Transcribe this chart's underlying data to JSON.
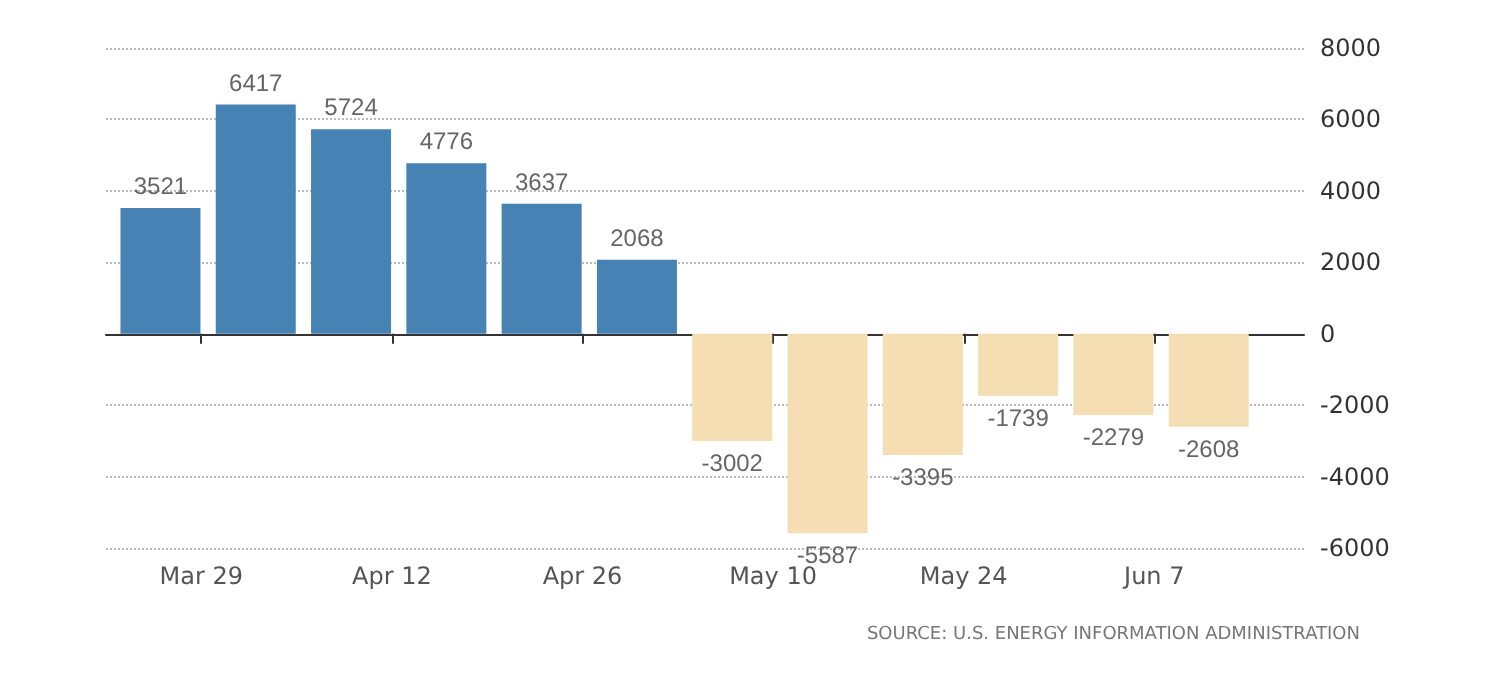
{
  "chart_data": {
    "type": "bar",
    "x": [
      "--03-26",
      "--04-02",
      "--04-09",
      "--04-16",
      "--04-23",
      "--04-30",
      "--05-07",
      "--05-14",
      "--05-21",
      "--05-28",
      "--06-04",
      "--06-11"
    ],
    "values": [
      3521,
      6417,
      5724,
      4776,
      3637,
      2068,
      -3002,
      -5587,
      -3395,
      -1739,
      -2279,
      -2608
    ],
    "colors": [
      "#4682b4",
      "#4682b4",
      "#4682b4",
      "#4682b4",
      "#4682b4",
      "#4682b4",
      "#f5deb3",
      "#f5deb3",
      "#f5deb3",
      "#f5deb3",
      "#f5deb3",
      "#f5deb3"
    ],
    "data_labels": true,
    "xlim": [
      "--03-22",
      "--06-18"
    ],
    "xticks": [
      {
        "value": "--03-29",
        "label": "Mar 29"
      },
      {
        "value": "--04-12",
        "label": "Apr 12"
      },
      {
        "value": "--04-26",
        "label": "Apr 26"
      },
      {
        "value": "--05-10",
        "label": "May 10"
      },
      {
        "value": "--05-24",
        "label": "May 24"
      },
      {
        "value": "--06-07",
        "label": "Jun 7"
      }
    ],
    "ylim": [
      -6000,
      8000
    ],
    "yticks": [
      -6000,
      -4000,
      -2000,
      0,
      2000,
      4000,
      6000,
      8000
    ],
    "grid": "y",
    "annotations": [
      "SOURCE: U.S. ENERGY INFORMATION ADMINISTRATION"
    ]
  }
}
